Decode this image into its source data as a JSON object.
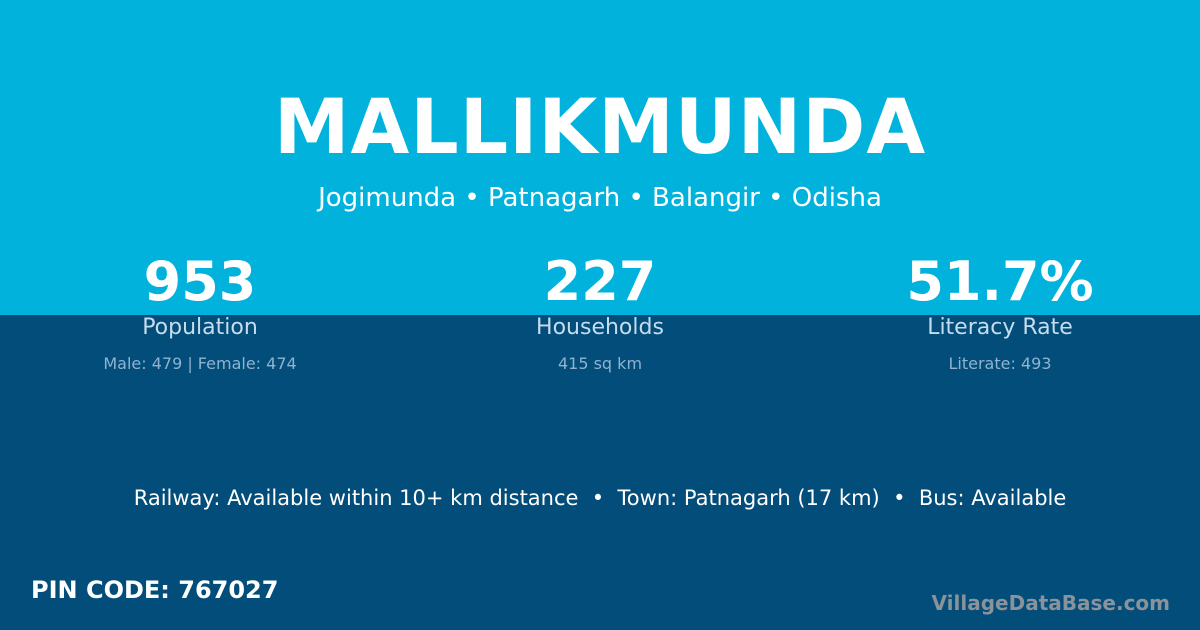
{
  "village": "MALLIKMUNDA",
  "location": "Jogimunda • Patnagarh • Balangir • Odisha",
  "stats": [
    {
      "value": "953",
      "label": "Population",
      "detail": "Male: 479 | Female: 474"
    },
    {
      "value": "227",
      "label": "Households",
      "detail": "415 sq km"
    },
    {
      "value": "51.7%",
      "label": "Literacy Rate",
      "detail": "Literate: 493"
    }
  ],
  "connectivity": "Railway: Available within 10+ km distance  •  Town: Patnagarh (17 km)  •  Bus: Available",
  "pin_code": "PIN CODE: 767027",
  "brand": "VillageDataBase.com",
  "colors": {
    "top": "#00b2dc",
    "bottom": "#034d7a"
  }
}
